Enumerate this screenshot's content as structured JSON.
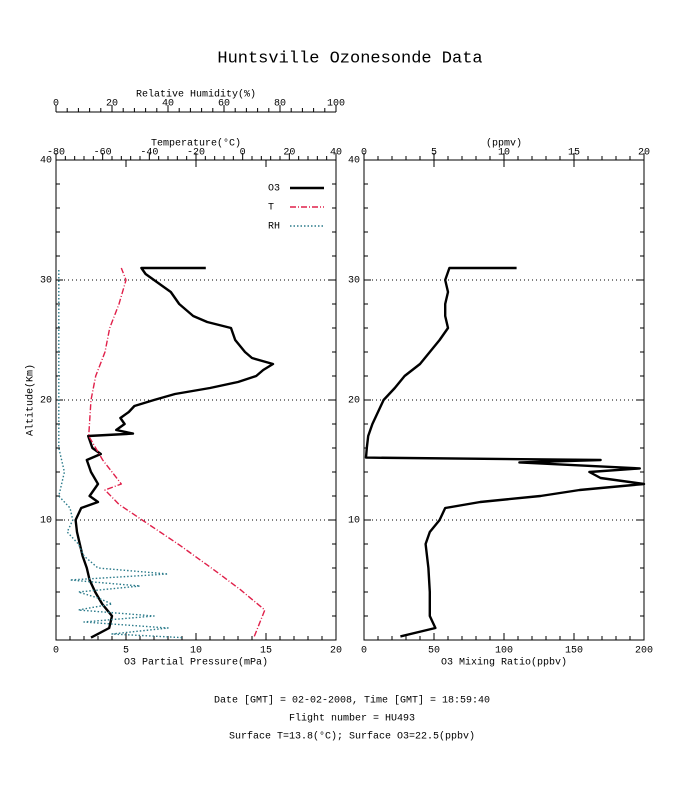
{
  "title": "Huntsville Ozonesonde Data",
  "footer": [
    "Date [GMT] = 02-02-2008,  Time [GMT] = 18:59:40",
    "Flight number = HU493",
    "Surface T=13.8(°C); Surface O3=22.5(ppbv)"
  ],
  "chart_data": [
    {
      "type": "line",
      "ylabel": "Altitude(Km)",
      "ylim": [
        0,
        40
      ],
      "yticks": [
        10,
        20,
        30,
        40
      ],
      "grid": true,
      "legend": "upper right",
      "xlabel": "O3 Partial Pressure(mPa)",
      "xlim": [
        0,
        20
      ],
      "xticks": [
        0,
        5,
        10,
        15,
        20
      ],
      "x2label": "Temperature(°C)",
      "x2lim": [
        -80,
        40
      ],
      "x2ticks": [
        -80,
        -60,
        -40,
        -20,
        0,
        20,
        40
      ],
      "x3label": "Relative Humidity(%)",
      "x3lim": [
        0,
        100
      ],
      "x3ticks": [
        0,
        20,
        40,
        60,
        80,
        100
      ],
      "series": [
        {
          "name": "O3",
          "color": "#000000",
          "dash": "solid",
          "axis": "x",
          "altitude": [
            0.2,
            1,
            2,
            3,
            4,
            5,
            6,
            7,
            8,
            9,
            10,
            11,
            11.5,
            12,
            13,
            14,
            15,
            15.5,
            16,
            17,
            17.2,
            17.5,
            18,
            18.5,
            19,
            19.5,
            20,
            20.5,
            21,
            21.5,
            22,
            22.5,
            23,
            23.5,
            24,
            25,
            26,
            26.5,
            27,
            28,
            29,
            30,
            30.5,
            31,
            31
          ],
          "values": [
            2.5,
            3.8,
            4.0,
            3.3,
            2.8,
            2.4,
            2.2,
            1.9,
            1.7,
            1.5,
            1.4,
            1.8,
            3.0,
            2.4,
            3.0,
            2.5,
            2.2,
            3.2,
            2.6,
            2.3,
            5.5,
            4.3,
            4.9,
            4.6,
            5.2,
            5.6,
            7.0,
            8.5,
            11.0,
            13.0,
            14.3,
            14.8,
            15.5,
            14.0,
            13.5,
            12.8,
            12.5,
            10.8,
            9.8,
            8.8,
            8.2,
            7.0,
            6.4,
            6.1,
            10.7
          ]
        },
        {
          "name": "T",
          "color": "#e0204a",
          "dash": "dashdot",
          "axis": "x2",
          "altitude": [
            0.3,
            2.5,
            4.2,
            5.8,
            7.9,
            9.6,
            11.3,
            12.5,
            13,
            14,
            15,
            17,
            20,
            22,
            24,
            26,
            28,
            30,
            31
          ],
          "values": [
            5,
            9.5,
            -1,
            -12,
            -27,
            -40,
            -53,
            -59,
            -52,
            -56,
            -60,
            -66,
            -65,
            -63,
            -59,
            -57,
            -53,
            -50,
            -52
          ]
        },
        {
          "name": "RH",
          "color": "#2a7a8a",
          "dash": "dotted",
          "axis": "x3",
          "altitude": [
            0.2,
            0.5,
            1,
            1.5,
            2,
            2.5,
            3,
            3.5,
            4,
            4.5,
            5,
            5.5,
            6,
            7,
            8,
            9,
            10,
            11,
            12,
            14,
            16,
            20,
            25,
            30,
            31
          ],
          "values": [
            45,
            20,
            40,
            10,
            35,
            8,
            20,
            15,
            8,
            30,
            5,
            40,
            15,
            10,
            8,
            4,
            6,
            5,
            1,
            3,
            1,
            1,
            1,
            1,
            1
          ]
        }
      ]
    },
    {
      "type": "line",
      "ylim": [
        0,
        40
      ],
      "yticks": [
        10,
        20,
        30,
        40
      ],
      "grid": true,
      "xlabel": "O3 Mixing Ratio(ppbv)",
      "xlim": [
        0,
        200
      ],
      "xticks": [
        0,
        50,
        100,
        150,
        200
      ],
      "x2label": "(ppmv)",
      "x2lim": [
        0,
        20
      ],
      "x2ticks": [
        0,
        5,
        10,
        15,
        20
      ],
      "series": [
        {
          "color": "#000000",
          "dash": "solid",
          "axis": "x",
          "altitude": [
            0.3,
            1,
            2,
            4,
            6,
            8,
            9,
            10,
            11,
            11.5,
            12,
            12.5,
            13,
            13.5,
            14,
            14.3,
            14.8,
            15,
            15.2,
            16,
            17,
            18,
            19,
            20,
            21,
            22,
            23,
            24,
            25,
            26,
            27,
            28,
            29,
            30,
            31,
            31
          ],
          "values": [
            26,
            51,
            47,
            47,
            46,
            44,
            47,
            54,
            58,
            83,
            126,
            154,
            200,
            169,
            161,
            197,
            111,
            169,
            1.4,
            2,
            3,
            6,
            10,
            14,
            22,
            29,
            40,
            47,
            54,
            60,
            58,
            58,
            60,
            58,
            61,
            109
          ]
        }
      ]
    }
  ]
}
